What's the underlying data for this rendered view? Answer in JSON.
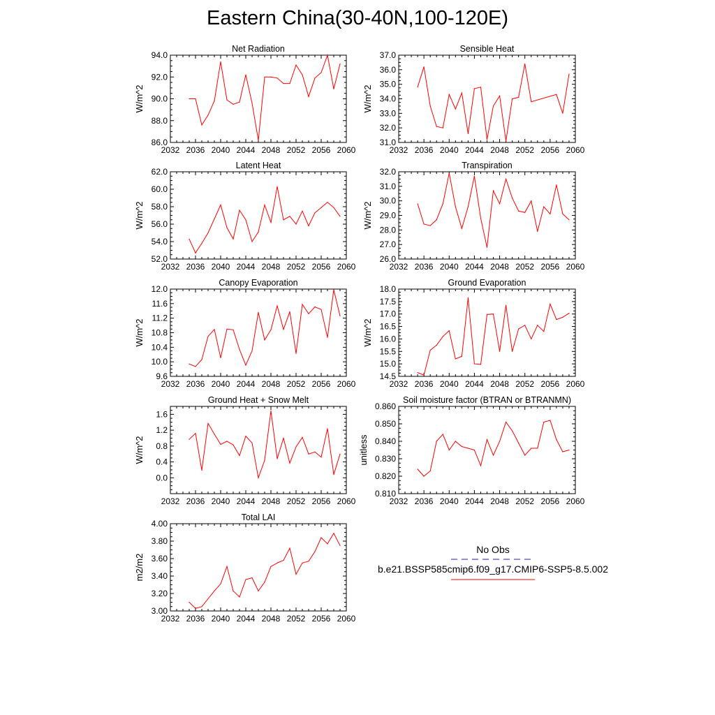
{
  "figure": {
    "title": "Eastern China(30-40N,100-120E)"
  },
  "legend": {
    "entries": [
      {
        "label": "No Obs",
        "color": "#2020a0",
        "style": "dashed"
      },
      {
        "label": "b.e21.BSSP585cmip6.f09_g17.CMIP6-SSP5-8.5.002",
        "color": "#ff0000",
        "style": "solid"
      }
    ]
  },
  "chart_data": [
    {
      "type": "line",
      "title": "Net Radiation",
      "ylabel": "W/m^2",
      "xlim": [
        2032,
        2060
      ],
      "ylim": [
        86.0,
        94.0
      ],
      "xticks": [
        2032,
        2036,
        2040,
        2044,
        2048,
        2052,
        2056,
        2060
      ],
      "yticks": [
        "86.0",
        "88.0",
        "90.0",
        "92.0",
        "94.0"
      ],
      "series": [
        {
          "color": "#ff0000",
          "x": [
            2035,
            2036,
            2037,
            2038,
            2039,
            2040,
            2041,
            2042,
            2043,
            2044,
            2045,
            2046,
            2047,
            2048,
            2049,
            2050,
            2051,
            2052,
            2053,
            2054,
            2055,
            2056,
            2057,
            2058,
            2059
          ],
          "y": [
            90.0,
            90.0,
            87.6,
            88.5,
            89.8,
            93.4,
            89.9,
            89.5,
            89.7,
            92.2,
            89.6,
            86.2,
            92.0,
            92.0,
            91.9,
            91.4,
            91.4,
            93.1,
            92.2,
            90.2,
            91.9,
            92.4,
            94.0,
            90.9,
            93.2
          ]
        }
      ]
    },
    {
      "type": "line",
      "title": "Sensible Heat",
      "ylabel": "W/m^2",
      "xlim": [
        2032,
        2060
      ],
      "ylim": [
        31.0,
        37.0
      ],
      "xticks": [
        2032,
        2036,
        2040,
        2044,
        2048,
        2052,
        2056,
        2060
      ],
      "yticks": [
        "31.0",
        "32.0",
        "33.0",
        "34.0",
        "35.0",
        "36.0",
        "37.0"
      ],
      "series": [
        {
          "color": "#ff0000",
          "x": [
            2035,
            2036,
            2037,
            2038,
            2039,
            2040,
            2041,
            2042,
            2043,
            2044,
            2045,
            2046,
            2047,
            2048,
            2049,
            2050,
            2051,
            2052,
            2053,
            2057,
            2058,
            2059
          ],
          "y": [
            34.8,
            36.2,
            33.5,
            32.1,
            32.0,
            34.3,
            33.3,
            34.4,
            31.6,
            34.7,
            34.8,
            31.2,
            33.5,
            34.2,
            31.1,
            34.0,
            34.1,
            36.4,
            33.8,
            34.3,
            33.0,
            35.7
          ]
        }
      ]
    },
    {
      "type": "line",
      "title": "Latent Heat",
      "ylabel": "W/m^2",
      "xlim": [
        2032,
        2060
      ],
      "ylim": [
        52.0,
        62.0
      ],
      "xticks": [
        2032,
        2036,
        2040,
        2044,
        2048,
        2052,
        2056,
        2060
      ],
      "yticks": [
        "52.0",
        "54.0",
        "56.0",
        "58.0",
        "60.0",
        "62.0"
      ],
      "series": [
        {
          "color": "#ff0000",
          "x": [
            2035,
            2036,
            2037,
            2038,
            2039,
            2040,
            2041,
            2042,
            2043,
            2044,
            2045,
            2046,
            2047,
            2048,
            2049,
            2050,
            2051,
            2052,
            2053,
            2054,
            2055,
            2056,
            2057,
            2058,
            2059
          ],
          "y": [
            54.3,
            52.7,
            53.8,
            55.0,
            56.6,
            58.2,
            55.6,
            54.3,
            57.6,
            56.5,
            54.0,
            55.1,
            58.2,
            56.2,
            60.3,
            56.5,
            56.9,
            56.0,
            57.5,
            55.8,
            57.3,
            57.9,
            58.5,
            57.9,
            56.9
          ]
        }
      ]
    },
    {
      "type": "line",
      "title": "Transpiration",
      "ylabel": "W/m^2",
      "xlim": [
        2032,
        2060
      ],
      "ylim": [
        26.0,
        32.0
      ],
      "xticks": [
        2032,
        2036,
        2040,
        2044,
        2048,
        2052,
        2056,
        2060
      ],
      "yticks": [
        "26.0",
        "27.0",
        "28.0",
        "29.0",
        "30.0",
        "31.0",
        "32.0"
      ],
      "series": [
        {
          "color": "#ff0000",
          "x": [
            2035,
            2036,
            2037,
            2038,
            2039,
            2040,
            2041,
            2042,
            2043,
            2044,
            2045,
            2046,
            2047,
            2048,
            2049,
            2050,
            2051,
            2052,
            2053,
            2054,
            2055,
            2056,
            2057,
            2058,
            2059
          ],
          "y": [
            29.8,
            28.4,
            28.3,
            28.7,
            29.8,
            31.9,
            29.6,
            28.1,
            29.6,
            31.7,
            28.8,
            26.8,
            30.7,
            29.8,
            31.5,
            30.2,
            29.3,
            29.2,
            30.0,
            27.9,
            29.6,
            29.1,
            31.1,
            29.1,
            28.7
          ]
        }
      ]
    },
    {
      "type": "line",
      "title": "Canopy Evaporation",
      "ylabel": "W/m^2",
      "xlim": [
        2032,
        2060
      ],
      "ylim": [
        9.6,
        12.0
      ],
      "xticks": [
        2032,
        2036,
        2040,
        2044,
        2048,
        2052,
        2056,
        2060
      ],
      "yticks": [
        "9.6",
        "10.0",
        "10.4",
        "10.8",
        "11.2",
        "11.6",
        "12.0"
      ],
      "series": [
        {
          "color": "#ff0000",
          "x": [
            2035,
            2036,
            2037,
            2038,
            2039,
            2040,
            2041,
            2042,
            2043,
            2044,
            2045,
            2046,
            2047,
            2048,
            2049,
            2050,
            2051,
            2052,
            2053,
            2054,
            2055,
            2056,
            2057,
            2058,
            2059
          ],
          "y": [
            9.94,
            9.87,
            10.06,
            10.7,
            10.89,
            10.11,
            10.9,
            10.88,
            10.34,
            9.91,
            10.3,
            11.36,
            10.6,
            10.88,
            11.54,
            10.89,
            11.38,
            10.23,
            11.58,
            11.32,
            11.51,
            11.44,
            10.67,
            11.98,
            11.26
          ]
        }
      ]
    },
    {
      "type": "line",
      "title": "Ground Evaporation",
      "ylabel": "W/m^2",
      "xlim": [
        2032,
        2060
      ],
      "ylim": [
        14.5,
        18.0
      ],
      "xticks": [
        2032,
        2036,
        2040,
        2044,
        2048,
        2052,
        2056,
        2060
      ],
      "yticks": [
        "14.5",
        "15.0",
        "15.5",
        "16.0",
        "16.5",
        "17.0",
        "17.5",
        "18.0"
      ],
      "series": [
        {
          "color": "#ff0000",
          "x": [
            2035,
            2036,
            2037,
            2038,
            2039,
            2040,
            2041,
            2042,
            2043,
            2044,
            2045,
            2046,
            2047,
            2048,
            2049,
            2050,
            2051,
            2052,
            2053,
            2054,
            2055,
            2056,
            2057,
            2058,
            2059
          ],
          "y": [
            14.65,
            14.55,
            15.55,
            15.75,
            16.1,
            16.33,
            15.2,
            15.3,
            17.65,
            15.0,
            14.98,
            16.98,
            17.0,
            15.5,
            17.35,
            15.5,
            16.4,
            16.55,
            16.0,
            16.55,
            16.3,
            17.4,
            16.78,
            16.87,
            17.03
          ]
        }
      ]
    },
    {
      "type": "line",
      "title": "Ground Heat + Snow Melt",
      "ylabel": "W/m^2",
      "xlim": [
        2032,
        2060
      ],
      "ylim": [
        -0.4,
        1.8
      ],
      "xticks": [
        2032,
        2036,
        2040,
        2044,
        2048,
        2052,
        2056,
        2060
      ],
      "yticks": [
        "0.0",
        "0.4",
        "0.8",
        "1.2",
        "1.6"
      ],
      "series": [
        {
          "color": "#ff0000",
          "x": [
            2035,
            2036,
            2037,
            2038,
            2039,
            2040,
            2041,
            2042,
            2043,
            2044,
            2045,
            2046,
            2047,
            2048,
            2049,
            2050,
            2051,
            2052,
            2053,
            2054,
            2055,
            2056,
            2057,
            2058,
            2059
          ],
          "y": [
            0.97,
            1.12,
            0.19,
            1.37,
            1.1,
            0.84,
            0.92,
            0.83,
            0.56,
            1.05,
            0.88,
            0.0,
            0.44,
            1.69,
            0.48,
            1.0,
            0.37,
            0.78,
            1.02,
            0.6,
            0.65,
            0.52,
            1.24,
            0.08,
            0.6
          ]
        }
      ]
    },
    {
      "type": "line",
      "title": "Soil moisture factor (BTRAN or BTRANMN)",
      "ylabel": "unitless",
      "xlim": [
        2032,
        2060
      ],
      "ylim": [
        0.81,
        0.86
      ],
      "xticks": [
        2032,
        2036,
        2040,
        2044,
        2048,
        2052,
        2056,
        2060
      ],
      "yticks": [
        "0.810",
        "0.820",
        "0.830",
        "0.840",
        "0.850",
        "0.860"
      ],
      "series": [
        {
          "color": "#ff0000",
          "x": [
            2035,
            2036,
            2037,
            2038,
            2039,
            2040,
            2041,
            2042,
            2043,
            2044,
            2045,
            2046,
            2047,
            2048,
            2049,
            2050,
            2051,
            2052,
            2053,
            2054,
            2055,
            2056,
            2057,
            2058,
            2059
          ],
          "y": [
            0.824,
            0.82,
            0.823,
            0.84,
            0.844,
            0.835,
            0.84,
            0.837,
            0.836,
            0.835,
            0.826,
            0.841,
            0.832,
            0.84,
            0.851,
            0.846,
            0.839,
            0.832,
            0.836,
            0.836,
            0.851,
            0.852,
            0.841,
            0.834,
            0.835
          ]
        }
      ]
    },
    {
      "type": "line",
      "title": "Total LAI",
      "ylabel": "m2/m2",
      "xlim": [
        2032,
        2060
      ],
      "ylim": [
        3.0,
        4.0
      ],
      "xticks": [
        2032,
        2036,
        2040,
        2044,
        2048,
        2052,
        2056,
        2060
      ],
      "yticks": [
        "3.00",
        "3.20",
        "3.40",
        "3.60",
        "3.80",
        "4.00"
      ],
      "series": [
        {
          "color": "#ff0000",
          "x": [
            2035,
            2036,
            2037,
            2038,
            2039,
            2040,
            2041,
            2042,
            2043,
            2044,
            2045,
            2046,
            2047,
            2048,
            2049,
            2050,
            2051,
            2052,
            2053,
            2054,
            2055,
            2056,
            2057,
            2058,
            2059
          ],
          "y": [
            3.1,
            3.03,
            3.05,
            3.14,
            3.23,
            3.31,
            3.51,
            3.23,
            3.16,
            3.36,
            3.38,
            3.23,
            3.33,
            3.51,
            3.55,
            3.58,
            3.72,
            3.42,
            3.55,
            3.57,
            3.68,
            3.84,
            3.77,
            3.89,
            3.75
          ]
        }
      ]
    }
  ]
}
